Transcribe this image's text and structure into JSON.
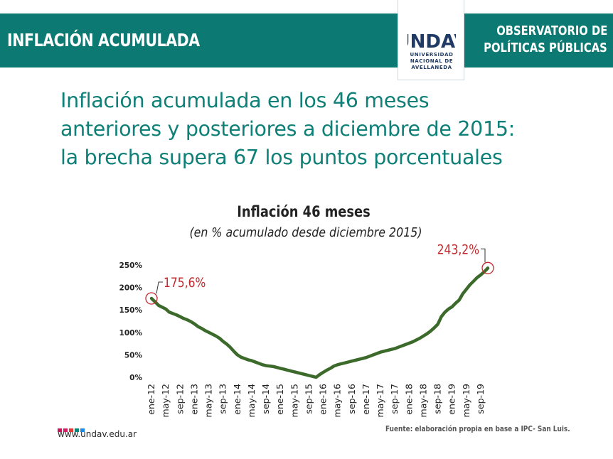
{
  "header": {
    "title": "INFLACIÓN ACUMULADA",
    "observatory_line1": "OBSERVATORIO DE",
    "observatory_line2": "POLÍTICAS PÚBLICAS",
    "logo_text": "UNDAV",
    "logo_line1": "UNIVERSIDAD",
    "logo_line2": "NACIONAL DE",
    "logo_line3": "AVELLANEDA",
    "colors": {
      "bar": "#0c7a72",
      "logo": "#1f3a64"
    }
  },
  "headline": {
    "line1": "Inflación acumulada en los 46 meses",
    "line2": "anteriores y posteriores a diciembre de 2015:",
    "line3": "la brecha supera 67 los puntos porcentuales"
  },
  "footer": {
    "url": "www.undav.edu.ar",
    "source": "Fuente: elaboración propia en base a IPC- San Luis.",
    "dot_colors": [
      "#c2185b",
      "#d81b60",
      "#e53935",
      "#00897b",
      "#1e88e5"
    ]
  },
  "chart_data": {
    "type": "line",
    "title": "Inflación 46 meses",
    "subtitle": "(en % acumulado desde diciembre 2015)",
    "xlabel": "",
    "ylabel": "",
    "ylim": [
      0,
      250
    ],
    "yticks": [
      "0%",
      "50%",
      "100%",
      "150%",
      "200%",
      "250%"
    ],
    "ytick_values": [
      0,
      50,
      100,
      150,
      200,
      250
    ],
    "grid": false,
    "legend": "none",
    "line_color": "#3b6a2a",
    "annotation_color": "#c0282d",
    "x_tick_labels": [
      "ene-12",
      "may-12",
      "sep-12",
      "ene-13",
      "may-13",
      "sep-13",
      "ene-14",
      "may-14",
      "sep-14",
      "ene-15",
      "may-15",
      "sep-15",
      "ene-16",
      "may-16",
      "sep-16",
      "ene-17",
      "may-17",
      "sep-17",
      "ene-18",
      "may-18",
      "sep-18",
      "ene-19",
      "may-19",
      "sep-19"
    ],
    "x_tick_months": [
      0,
      4,
      8,
      12,
      16,
      20,
      24,
      28,
      32,
      36,
      40,
      44,
      48,
      52,
      56,
      60,
      64,
      68,
      72,
      76,
      80,
      84,
      88,
      92
    ],
    "series": [
      {
        "values": [
          175.6,
          168,
          160,
          156,
          152,
          145,
          142,
          139,
          135,
          131,
          128,
          124,
          119,
          113,
          109,
          104,
          100,
          96,
          92,
          87,
          80,
          74,
          67,
          58,
          50,
          45,
          42,
          39,
          37,
          34,
          31,
          28,
          26,
          25,
          24,
          22,
          20,
          18,
          16,
          14,
          12,
          10,
          8,
          6,
          4,
          2,
          0,
          6,
          11,
          16,
          20,
          25,
          28,
          30,
          32,
          34,
          36,
          38,
          40,
          42,
          44,
          47,
          50,
          53,
          56,
          58,
          60,
          62,
          64,
          67,
          70,
          73,
          76,
          79,
          83,
          87,
          92,
          97,
          103,
          110,
          118,
          135,
          145,
          152,
          157,
          165,
          172,
          186,
          196,
          206,
          214,
          222,
          228,
          235,
          243.2
        ]
      }
    ],
    "annotations": [
      {
        "label": "175,6%",
        "month": 0,
        "value": 175.6
      },
      {
        "label": "243,2%",
        "month": 94,
        "value": 243.2
      }
    ]
  }
}
